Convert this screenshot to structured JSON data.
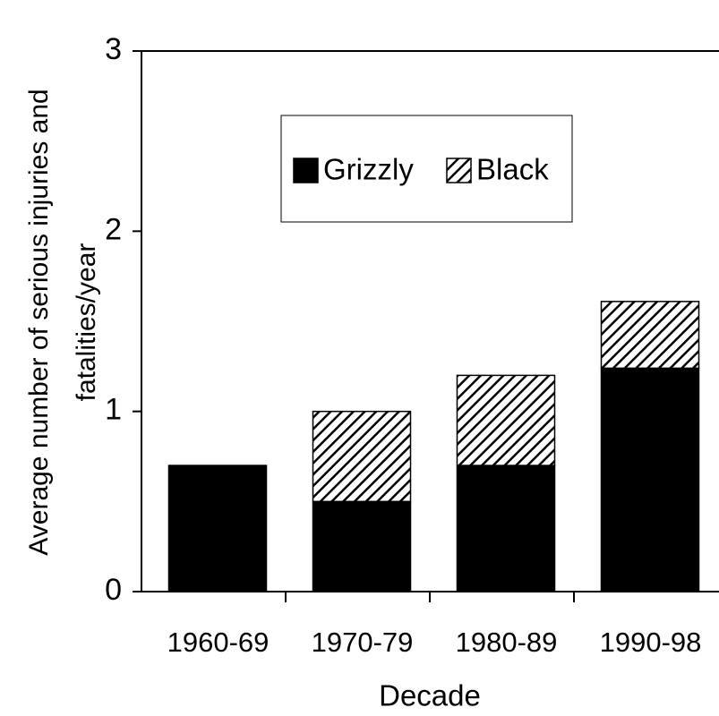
{
  "chart_data": {
    "type": "stacked_bar",
    "ylabel": [
      "Average number of serious injuries and",
      "fatalities/year"
    ],
    "xlabel": "Decade",
    "categories": [
      "1960-69",
      "1970-79",
      "1980-89",
      "1990-98"
    ],
    "series": [
      {
        "name": "Grizzly",
        "color": "#000000",
        "hatch": false,
        "values": [
          0.7,
          0.5,
          0.7,
          1.24
        ]
      },
      {
        "name": "Black",
        "color": "#000000",
        "hatch": true,
        "values": [
          0,
          0.5,
          0.5,
          0.37
        ]
      }
    ],
    "ylim": [
      0,
      3
    ],
    "yticks": [
      0,
      1,
      2,
      3
    ],
    "grid": false
  }
}
